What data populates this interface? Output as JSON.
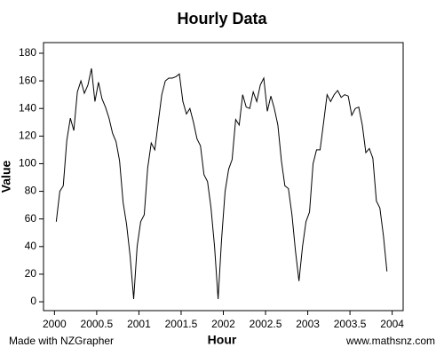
{
  "chart_data": {
    "type": "line",
    "title": "Hourly Data",
    "xlabel": "Hour",
    "ylabel": "Value",
    "footer_left": "Made with NZGrapher",
    "footer_right": "www.mathsnz.com",
    "x": [
      2000.021,
      2000.063,
      2000.104,
      2000.146,
      2000.188,
      2000.229,
      2000.271,
      2000.313,
      2000.354,
      2000.396,
      2000.438,
      2000.479,
      2000.521,
      2000.563,
      2000.604,
      2000.646,
      2000.688,
      2000.729,
      2000.771,
      2000.813,
      2000.854,
      2000.896,
      2000.938,
      2000.979,
      2001.021,
      2001.063,
      2001.104,
      2001.146,
      2001.188,
      2001.229,
      2001.271,
      2001.313,
      2001.354,
      2001.396,
      2001.438,
      2001.479,
      2001.521,
      2001.563,
      2001.604,
      2001.646,
      2001.688,
      2001.729,
      2001.771,
      2001.813,
      2001.854,
      2001.896,
      2001.938,
      2001.979,
      2002.021,
      2002.063,
      2002.104,
      2002.146,
      2002.188,
      2002.229,
      2002.271,
      2002.313,
      2002.354,
      2002.396,
      2002.438,
      2002.479,
      2002.521,
      2002.563,
      2002.604,
      2002.646,
      2002.688,
      2002.729,
      2002.771,
      2002.813,
      2002.854,
      2002.896,
      2002.938,
      2002.979,
      2003.021,
      2003.063,
      2003.104,
      2003.146,
      2003.188,
      2003.229,
      2003.271,
      2003.313,
      2003.354,
      2003.396,
      2003.438,
      2003.479,
      2003.521,
      2003.563,
      2003.604,
      2003.646,
      2003.688,
      2003.729,
      2003.771,
      2003.813,
      2003.854,
      2003.896,
      2003.938
    ],
    "series": [
      {
        "name": "Value",
        "color": "#000000",
        "values": [
          58,
          80,
          84,
          117,
          133,
          124,
          152,
          160,
          151,
          157,
          169,
          145,
          159,
          147,
          141,
          133,
          122,
          116,
          102,
          72,
          56,
          33,
          2,
          40,
          58,
          63,
          97,
          115,
          110,
          130,
          150,
          160,
          162,
          162,
          163,
          165,
          145,
          136,
          140,
          130,
          118,
          113,
          92,
          87,
          68,
          40,
          2,
          45,
          80,
          96,
          103,
          132,
          128,
          150,
          141,
          140,
          152,
          145,
          157,
          162,
          138,
          149,
          140,
          128,
          102,
          84,
          82,
          63,
          37,
          15,
          40,
          58,
          65,
          100,
          110,
          110,
          130,
          150,
          145,
          150,
          153,
          148,
          150,
          149,
          135,
          140,
          141,
          128,
          108,
          111,
          104,
          73,
          68,
          48,
          22
        ]
      }
    ],
    "xlim": [
      1999.87,
      2004.13
    ],
    "ylim": [
      -6.4,
      187.7
    ],
    "xticks": [
      2000,
      2000.5,
      2001,
      2001.5,
      2002,
      2002.5,
      2003,
      2003.5,
      2004
    ],
    "yticks": [
      0,
      20,
      40,
      60,
      80,
      100,
      120,
      140,
      160,
      180
    ]
  }
}
